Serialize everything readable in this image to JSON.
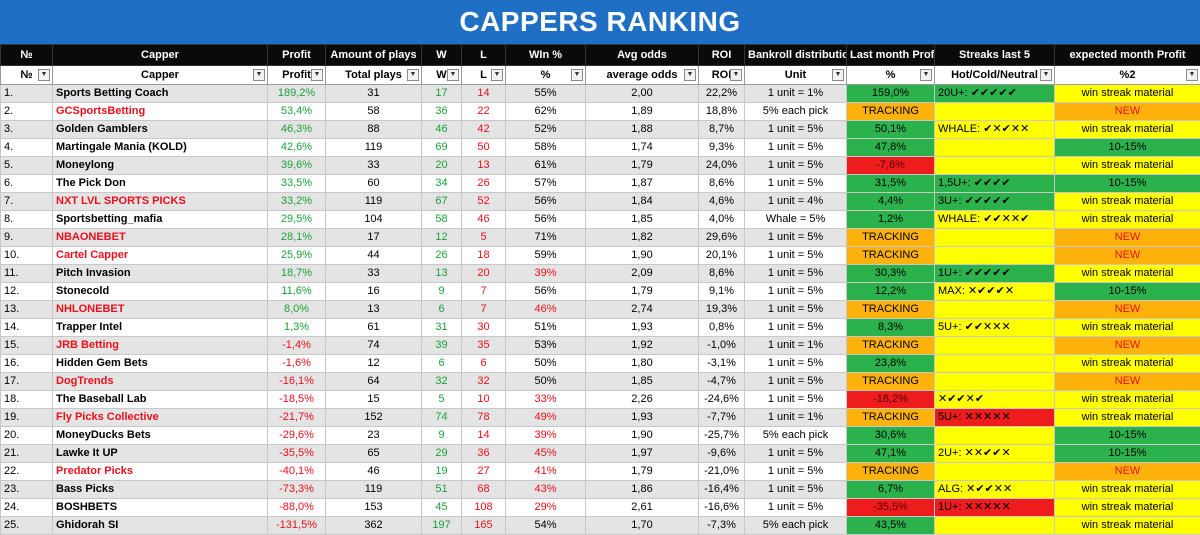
{
  "title": "CAPPERS RANKING",
  "headers": [
    "№",
    "Capper",
    "Profit",
    "Amount of plays",
    "W",
    "L",
    "WIn %",
    "Avg odds",
    "ROI",
    "Bankroll distribution",
    "Last month Profit",
    "Streaks last 5",
    "expected month Profit"
  ],
  "subheaders": [
    "№",
    "Capper",
    "Profit",
    "Total plays",
    "W",
    "L",
    "%",
    "average odds",
    "ROI",
    "Unit",
    "%",
    "Hot/Cold/Neutral",
    "%2"
  ],
  "rows": [
    {
      "n": "1.",
      "name": "Sports Betting Coach",
      "red": false,
      "profit": "189,2%",
      "plays": "31",
      "w": "17",
      "l": "14",
      "pct": "55%",
      "pctred": false,
      "odds": "2,00",
      "roi": "22,2%",
      "unit": "1 unit = 1%",
      "lm": "159,0%",
      "lmc": "green",
      "st": "20U+: ✔✔✔✔✔",
      "stc": "green",
      "ex": "win streak material",
      "exc": "yellow"
    },
    {
      "n": "2.",
      "name": "GCSportsBetting",
      "red": true,
      "profit": "53,4%",
      "plays": "58",
      "w": "36",
      "l": "22",
      "pct": "62%",
      "pctred": false,
      "odds": "1,89",
      "roi": "18,8%",
      "unit": "5% each pick",
      "lm": "TRACKING",
      "lmc": "track",
      "st": "",
      "stc": "yellow",
      "ex": "NEW",
      "exc": "orange"
    },
    {
      "n": "3.",
      "name": "Golden Gamblers",
      "red": false,
      "profit": "46,3%",
      "plays": "88",
      "w": "46",
      "l": "42",
      "pct": "52%",
      "pctred": false,
      "odds": "1,88",
      "roi": "8,7%",
      "unit": "1 unit = 5%",
      "lm": "50,1%",
      "lmc": "green",
      "st": "WHALE: ✔✕✔✕✕",
      "stc": "yellow",
      "ex": "win streak material",
      "exc": "yellow"
    },
    {
      "n": "4.",
      "name": "Martingale Mania (KOLD)",
      "red": false,
      "profit": "42,6%",
      "plays": "119",
      "w": "69",
      "l": "50",
      "pct": "58%",
      "pctred": false,
      "odds": "1,74",
      "roi": "9,3%",
      "unit": "1 unit = 5%",
      "lm": "47,8%",
      "lmc": "green",
      "st": "",
      "stc": "yellow",
      "ex": "10-15%",
      "exc": "green"
    },
    {
      "n": "5.",
      "name": "Moneylong",
      "red": false,
      "profit": "39,6%",
      "plays": "33",
      "w": "20",
      "l": "13",
      "pct": "61%",
      "pctred": false,
      "odds": "1,79",
      "roi": "24,0%",
      "unit": "1 unit = 5%",
      "lm": "-7,6%",
      "lmc": "red",
      "st": "",
      "stc": "yellow",
      "ex": "win streak material",
      "exc": "yellow"
    },
    {
      "n": "6.",
      "name": "The Pick Don",
      "red": false,
      "profit": "33,5%",
      "plays": "60",
      "w": "34",
      "l": "26",
      "pct": "57%",
      "pctred": false,
      "odds": "1,87",
      "roi": "8,6%",
      "unit": "1 unit = 5%",
      "lm": "31,5%",
      "lmc": "green",
      "st": "1,5U+: ✔✔✔✔",
      "stc": "green",
      "ex": "10-15%",
      "exc": "green"
    },
    {
      "n": "7.",
      "name": "NXT LVL SPORTS PICKS",
      "red": true,
      "profit": "33,2%",
      "plays": "119",
      "w": "67",
      "l": "52",
      "pct": "56%",
      "pctred": false,
      "odds": "1,84",
      "roi": "4,6%",
      "unit": "1 unit = 4%",
      "lm": "4,4%",
      "lmc": "green",
      "st": "3U+: ✔✔✔✔✔",
      "stc": "green",
      "ex": "win streak material",
      "exc": "yellow"
    },
    {
      "n": "8.",
      "name": "Sportsbetting_mafia",
      "red": false,
      "profit": "29,5%",
      "plays": "104",
      "w": "58",
      "l": "46",
      "pct": "56%",
      "pctred": false,
      "odds": "1,85",
      "roi": "4,0%",
      "unit": "Whale = 5%",
      "lm": "1,2%",
      "lmc": "green",
      "st": "WHALE: ✔✔✕✕✔",
      "stc": "yellow",
      "ex": "win streak material",
      "exc": "yellow"
    },
    {
      "n": "9.",
      "name": "NBAONEBET",
      "red": true,
      "profit": "28,1%",
      "plays": "17",
      "w": "12",
      "l": "5",
      "pct": "71%",
      "pctred": false,
      "odds": "1,82",
      "roi": "29,6%",
      "unit": "1 unit = 5%",
      "lm": "TRACKING",
      "lmc": "track",
      "st": "",
      "stc": "yellow",
      "ex": "NEW",
      "exc": "orange"
    },
    {
      "n": "10.",
      "name": "Cartel Capper",
      "red": true,
      "profit": "25,9%",
      "plays": "44",
      "w": "26",
      "l": "18",
      "pct": "59%",
      "pctred": false,
      "odds": "1,90",
      "roi": "20,1%",
      "unit": "1 unit = 5%",
      "lm": "TRACKING",
      "lmc": "track",
      "st": "",
      "stc": "yellow",
      "ex": "NEW",
      "exc": "orange"
    },
    {
      "n": "11.",
      "name": "Pitch Invasion",
      "red": false,
      "profit": "18,7%",
      "plays": "33",
      "w": "13",
      "l": "20",
      "pct": "39%",
      "pctred": true,
      "odds": "2,09",
      "roi": "8,6%",
      "unit": "1 unit = 5%",
      "lm": "30,3%",
      "lmc": "green",
      "st": "1U+: ✔✔✔✔✔",
      "stc": "green",
      "ex": "win streak material",
      "exc": "yellow"
    },
    {
      "n": "12.",
      "name": "Stonecold",
      "red": false,
      "profit": "11,6%",
      "plays": "16",
      "w": "9",
      "l": "7",
      "pct": "56%",
      "pctred": false,
      "odds": "1,79",
      "roi": "9,1%",
      "unit": "1 unit = 5%",
      "lm": "12,2%",
      "lmc": "green",
      "st": "MAX: ✕✔✔✔✕",
      "stc": "yellow",
      "ex": "10-15%",
      "exc": "green"
    },
    {
      "n": "13.",
      "name": "NHLONEBET",
      "red": true,
      "profit": "8,0%",
      "plays": "13",
      "w": "6",
      "l": "7",
      "pct": "46%",
      "pctred": true,
      "odds": "2,74",
      "roi": "19,3%",
      "unit": "1 unit = 5%",
      "lm": "TRACKING",
      "lmc": "track",
      "st": "",
      "stc": "yellow",
      "ex": "NEW",
      "exc": "orange"
    },
    {
      "n": "14.",
      "name": "Trapper Intel",
      "red": false,
      "profit": "1,3%",
      "plays": "61",
      "w": "31",
      "l": "30",
      "pct": "51%",
      "pctred": false,
      "odds": "1,93",
      "roi": "0,8%",
      "unit": "1 unit = 5%",
      "lm": "8,3%",
      "lmc": "green",
      "st": "5U+: ✔✔✕✕✕",
      "stc": "yellow",
      "ex": "win streak material",
      "exc": "yellow"
    },
    {
      "n": "15.",
      "name": "JRB Betting",
      "red": true,
      "profit": "-1,4%",
      "plays": "74",
      "w": "39",
      "l": "35",
      "pct": "53%",
      "pctred": false,
      "odds": "1,92",
      "roi": "-1,0%",
      "unit": "1 unit = 1%",
      "lm": "TRACKING",
      "lmc": "track",
      "st": "",
      "stc": "yellow",
      "ex": "NEW",
      "exc": "orange"
    },
    {
      "n": "16.",
      "name": "Hidden Gem Bets",
      "red": false,
      "profit": "-1,6%",
      "plays": "12",
      "w": "6",
      "l": "6",
      "pct": "50%",
      "pctred": false,
      "odds": "1,80",
      "roi": "-3,1%",
      "unit": "1 unit = 5%",
      "lm": "23,8%",
      "lmc": "green",
      "st": "",
      "stc": "yellow",
      "ex": "win streak material",
      "exc": "yellow"
    },
    {
      "n": "17.",
      "name": "DogTrends",
      "red": true,
      "profit": "-16,1%",
      "plays": "64",
      "w": "32",
      "l": "32",
      "pct": "50%",
      "pctred": false,
      "odds": "1,85",
      "roi": "-4,7%",
      "unit": "1 unit = 5%",
      "lm": "TRACKING",
      "lmc": "track",
      "st": "",
      "stc": "yellow",
      "ex": "NEW",
      "exc": "orange"
    },
    {
      "n": "18.",
      "name": "The Baseball Lab",
      "red": false,
      "profit": "-18,5%",
      "plays": "15",
      "w": "5",
      "l": "10",
      "pct": "33%",
      "pctred": true,
      "odds": "2,26",
      "roi": "-24,6%",
      "unit": "1 unit = 5%",
      "lm": "-18,2%",
      "lmc": "red",
      "st": "✕✔✔✕✔",
      "stc": "yellow",
      "ex": "win streak material",
      "exc": "yellow"
    },
    {
      "n": "19.",
      "name": "Fly Picks Collective",
      "red": true,
      "profit": "-21,7%",
      "plays": "152",
      "w": "74",
      "l": "78",
      "pct": "49%",
      "pctred": true,
      "odds": "1,93",
      "roi": "-7,7%",
      "unit": "1 unit = 1%",
      "lm": "TRACKING",
      "lmc": "track",
      "st": "5U+: ✕✕✕✕✕",
      "stc": "red",
      "ex": "win streak material",
      "exc": "yellow"
    },
    {
      "n": "20.",
      "name": "MoneyDucks Bets",
      "red": false,
      "profit": "-29,6%",
      "plays": "23",
      "w": "9",
      "l": "14",
      "pct": "39%",
      "pctred": true,
      "odds": "1,90",
      "roi": "-25,7%",
      "unit": "5% each pick",
      "lm": "30,6%",
      "lmc": "green",
      "st": "",
      "stc": "yellow",
      "ex": "10-15%",
      "exc": "green"
    },
    {
      "n": "21.",
      "name": "Lawke It UP",
      "red": false,
      "profit": "-35,5%",
      "plays": "65",
      "w": "29",
      "l": "36",
      "pct": "45%",
      "pctred": true,
      "odds": "1,97",
      "roi": "-9,6%",
      "unit": "1 unit = 5%",
      "lm": "47,1%",
      "lmc": "green",
      "st": "2U+: ✕✕✔✔✕",
      "stc": "yellow",
      "ex": "10-15%",
      "exc": "green"
    },
    {
      "n": "22.",
      "name": "Predator Picks",
      "red": true,
      "profit": "-40,1%",
      "plays": "46",
      "w": "19",
      "l": "27",
      "pct": "41%",
      "pctred": true,
      "odds": "1,79",
      "roi": "-21,0%",
      "unit": "1 unit = 5%",
      "lm": "TRACKING",
      "lmc": "track",
      "st": "",
      "stc": "yellow",
      "ex": "NEW",
      "exc": "orange"
    },
    {
      "n": "23.",
      "name": "Bass Picks",
      "red": false,
      "profit": "-73,3%",
      "plays": "119",
      "w": "51",
      "l": "68",
      "pct": "43%",
      "pctred": true,
      "odds": "1,86",
      "roi": "-16,4%",
      "unit": "1 unit = 5%",
      "lm": "6,7%",
      "lmc": "green",
      "st": "ALG: ✕✔✔✕✕",
      "stc": "yellow",
      "ex": "win streak material",
      "exc": "yellow"
    },
    {
      "n": "24.",
      "name": "BOSHBETS",
      "red": false,
      "profit": "-88,0%",
      "plays": "153",
      "w": "45",
      "l": "108",
      "pct": "29%",
      "pctred": true,
      "odds": "2,61",
      "roi": "-16,6%",
      "unit": "1 unit = 5%",
      "lm": "-35,5%",
      "lmc": "red",
      "st": "1U+: ✕✕✕✕✕",
      "stc": "red",
      "ex": "win streak material",
      "exc": "yellow"
    },
    {
      "n": "25.",
      "name": "Ghidorah SI",
      "red": false,
      "profit": "-131,5%",
      "plays": "362",
      "w": "197",
      "l": "165",
      "pct": "54%",
      "pctred": false,
      "odds": "1,70",
      "roi": "-7,3%",
      "unit": "5% each pick",
      "lm": "43,5%",
      "lmc": "green",
      "st": "",
      "stc": "yellow",
      "ex": "win streak material",
      "exc": "yellow"
    }
  ]
}
